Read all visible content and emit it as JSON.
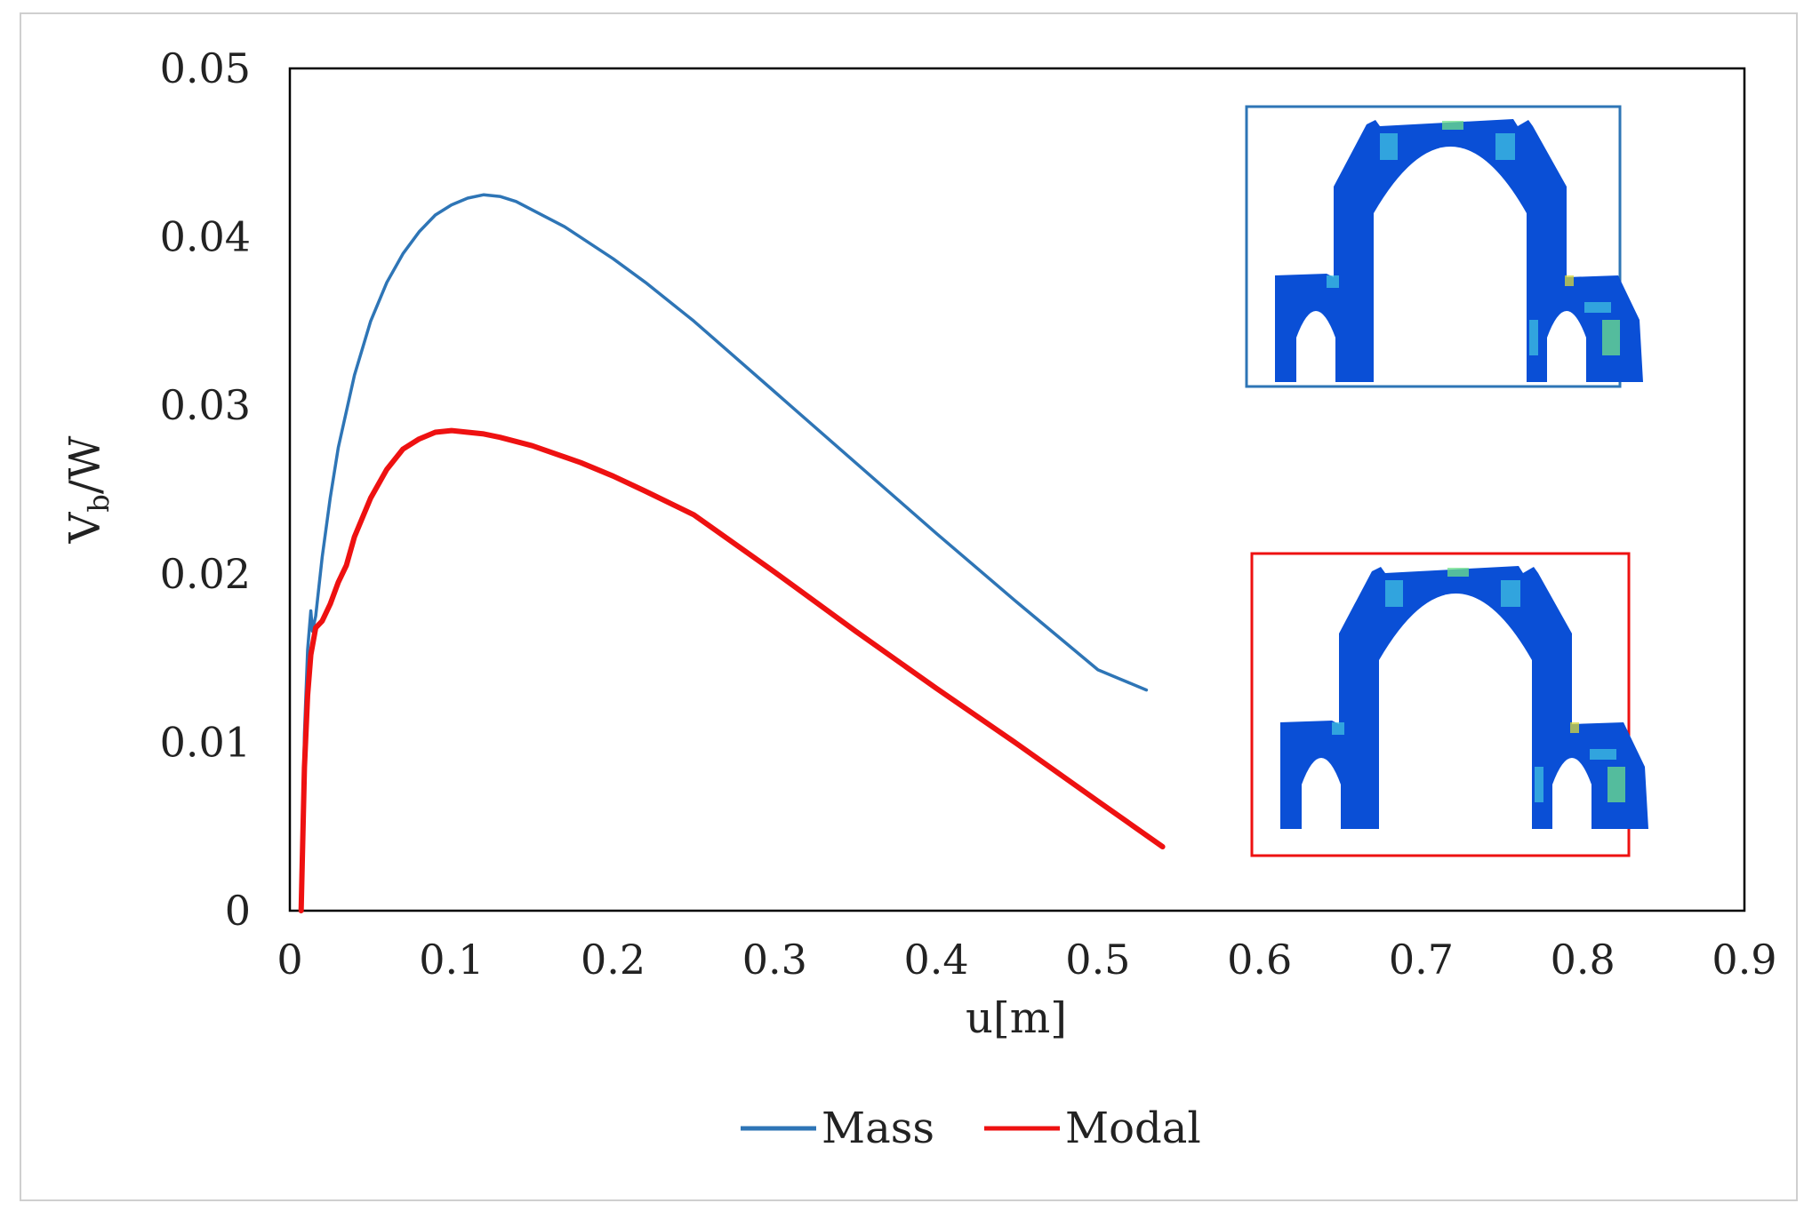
{
  "chart_data": {
    "type": "line",
    "title": "",
    "xlabel": "u[m]",
    "ylabel": {
      "base": "V",
      "subscript": "b",
      "rest": "/W"
    },
    "xlim": [
      0,
      0.9
    ],
    "ylim": [
      0,
      0.05
    ],
    "x_ticks": [
      "0",
      "0.1",
      "0.2",
      "0.3",
      "0.4",
      "0.5",
      "0.6",
      "0.7",
      "0.8",
      "0.9"
    ],
    "y_ticks": [
      "0",
      "0.01",
      "0.02",
      "0.03",
      "0.04",
      "0.05"
    ],
    "legend_position": "bottom",
    "grid": false,
    "series": [
      {
        "name": "Mass",
        "color": "#2e75b6",
        "x": [
          0.007,
          0.009,
          0.011,
          0.013,
          0.014,
          0.016,
          0.02,
          0.025,
          0.03,
          0.04,
          0.05,
          0.06,
          0.07,
          0.08,
          0.09,
          0.1,
          0.11,
          0.12,
          0.13,
          0.14,
          0.15,
          0.17,
          0.2,
          0.22,
          0.25,
          0.3,
          0.35,
          0.4,
          0.45,
          0.5,
          0.53
        ],
        "y": [
          0.0,
          0.0105,
          0.0155,
          0.0178,
          0.0166,
          0.0175,
          0.021,
          0.0245,
          0.0275,
          0.0318,
          0.035,
          0.0373,
          0.039,
          0.0403,
          0.0413,
          0.0419,
          0.0423,
          0.0425,
          0.0424,
          0.0421,
          0.0416,
          0.0406,
          0.0387,
          0.0373,
          0.035,
          0.0308,
          0.0266,
          0.0224,
          0.0183,
          0.0143,
          0.0131
        ]
      },
      {
        "name": "Modal",
        "color": "#ee1111",
        "x": [
          0.007,
          0.009,
          0.011,
          0.013,
          0.016,
          0.02,
          0.025,
          0.03,
          0.035,
          0.04,
          0.05,
          0.06,
          0.07,
          0.08,
          0.09,
          0.1,
          0.11,
          0.12,
          0.13,
          0.15,
          0.18,
          0.2,
          0.22,
          0.25,
          0.3,
          0.35,
          0.4,
          0.45,
          0.5,
          0.54
        ],
        "y": [
          0.0,
          0.0085,
          0.0128,
          0.0152,
          0.0168,
          0.0172,
          0.0182,
          0.0195,
          0.0205,
          0.0222,
          0.0245,
          0.0262,
          0.0274,
          0.028,
          0.0284,
          0.0285,
          0.0284,
          0.0283,
          0.0281,
          0.0276,
          0.0266,
          0.0258,
          0.0249,
          0.0235,
          0.0201,
          0.0166,
          0.0132,
          0.0099,
          0.0065,
          0.0038
        ]
      }
    ]
  },
  "insets": [
    {
      "series": "Mass",
      "border_color": "#2e75b6"
    },
    {
      "series": "Modal",
      "border_color": "#ee1111"
    }
  ],
  "colors": {
    "fe_body": "#0a4fd6",
    "fe_stress_light": "#3fc0e0",
    "fe_stress_mid": "#6ee08a",
    "fe_stress_high": "#d8d83a",
    "frame": "#cfcfcf"
  }
}
